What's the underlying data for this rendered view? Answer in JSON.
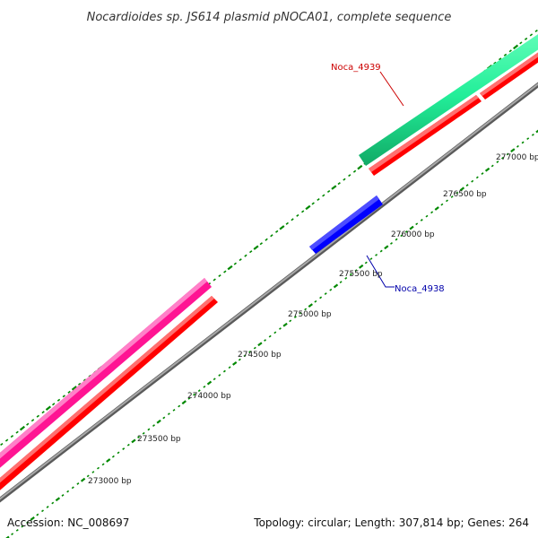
{
  "title": "Nocardioides sp. JS614 plasmid pNOCA01, complete sequence",
  "footer": {
    "accession": "Accession: NC_008697",
    "summary": "Topology: circular; Length: 307,814 bp; Genes: 264"
  },
  "ticks": [
    {
      "label": "273000 bp"
    },
    {
      "label": "273500 bp"
    },
    {
      "label": "274000 bp"
    },
    {
      "label": "274500 bp"
    },
    {
      "label": "275000 bp"
    },
    {
      "label": "275500 bp"
    },
    {
      "label": "276000 bp"
    },
    {
      "label": "276500 bp"
    },
    {
      "label": "277000 bp"
    }
  ],
  "genes": [
    {
      "name": "Noca_4939",
      "color": "#cc0000"
    },
    {
      "name": "Noca_4938",
      "color": "#0000aa"
    }
  ],
  "colors": {
    "backbone": "#8c8c8c",
    "cds_red": "#ff0000",
    "feature_green": "#22ee99",
    "feature_magenta": "#ff1493",
    "feature_blue": "#0000ff",
    "tick_green": "#008800"
  }
}
